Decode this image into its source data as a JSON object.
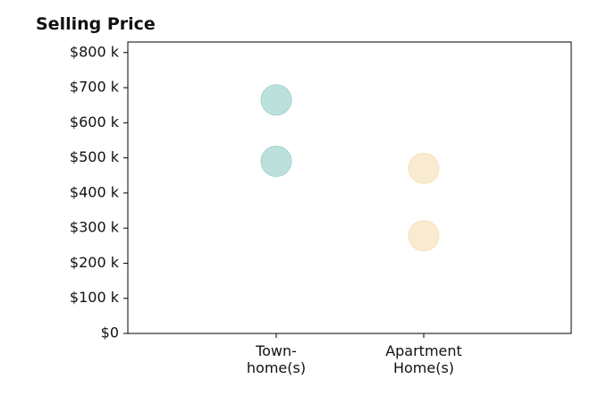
{
  "chart_data": {
    "type": "scatter",
    "title": "Selling Price",
    "xlabel": "",
    "ylabel": "",
    "categories": [
      "Town-\nhome(s)",
      "Apartment\nHome(s)"
    ],
    "ylim": [
      0,
      830
    ],
    "y_ticks": [
      0,
      100,
      200,
      300,
      400,
      500,
      600,
      700,
      800
    ],
    "y_tick_labels": [
      "$0",
      "$100 k",
      "$200 k",
      "$300 k",
      "$400 k",
      "$500 k",
      "$600 k",
      "$700 k",
      "$800 k"
    ],
    "grid": false,
    "series": [
      {
        "category_index": 0,
        "color": "#9fd4cf",
        "values": [
          665,
          490
        ]
      },
      {
        "category_index": 1,
        "color": "#f5e2bb",
        "values": [
          470,
          278
        ]
      }
    ]
  }
}
